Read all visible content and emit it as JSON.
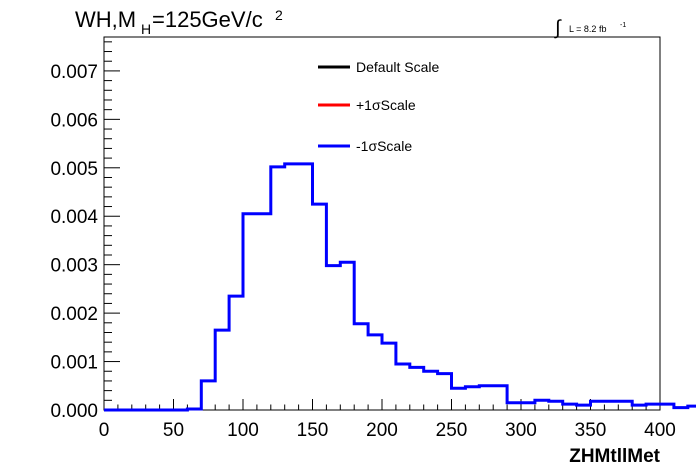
{
  "header": {
    "title_main": "WH,M",
    "title_sub": "H",
    "title_rest": "=125GeV/c",
    "title_sup": "2",
    "lumi_integral": "∫",
    "lumi_text": "L = 8.2 fb",
    "lumi_sup": "-1"
  },
  "legend": {
    "entries": [
      {
        "label": "Default Scale",
        "color": "#000000"
      },
      {
        "label": "+1σScale",
        "color": "#ff0000"
      },
      {
        "label": "-1σScale",
        "color": "#0000ff"
      }
    ]
  },
  "chart_data": {
    "type": "line",
    "step": true,
    "xlabel": "ZHMtllMet",
    "ylabel": "",
    "xlim": [
      0,
      400
    ],
    "ylim": [
      0,
      0.0077
    ],
    "x_ticks": [
      "0",
      "50",
      "100",
      "150",
      "200",
      "250",
      "300",
      "350",
      "400"
    ],
    "y_ticks": [
      "0.000",
      "0.001",
      "0.002",
      "0.003",
      "0.004",
      "0.005",
      "0.006",
      "0.007"
    ],
    "bin_width": 10,
    "bin_edges_start": 0,
    "series": [
      {
        "name": "-1σScale",
        "color": "#0000ff",
        "values": [
          0,
          0,
          0,
          0,
          0,
          0,
          2e-05,
          0.0006,
          0.00165,
          0.00235,
          0.00405,
          0.00405,
          0.00502,
          0.00508,
          0.00508,
          0.00425,
          0.00298,
          0.00305,
          0.00178,
          0.00155,
          0.00138,
          0.00095,
          0.00088,
          0.0008,
          0.00075,
          0.00045,
          0.00048,
          0.0005,
          0.0005,
          0.00015,
          0.00015,
          0.0002,
          0.00018,
          0.00012,
          0.0001,
          0.00018,
          0.00018,
          0.00018,
          0.0001,
          0.00012,
          0.00012,
          5e-05,
          8e-05,
          5e-05,
          5e-05,
          3e-05,
          5e-05,
          3e-05,
          3e-05,
          2e-05,
          2e-05,
          2e-05,
          3e-05,
          2e-05,
          2e-05,
          2e-05,
          2e-05,
          2e-05,
          1e-05,
          1e-05
        ]
      }
    ]
  }
}
